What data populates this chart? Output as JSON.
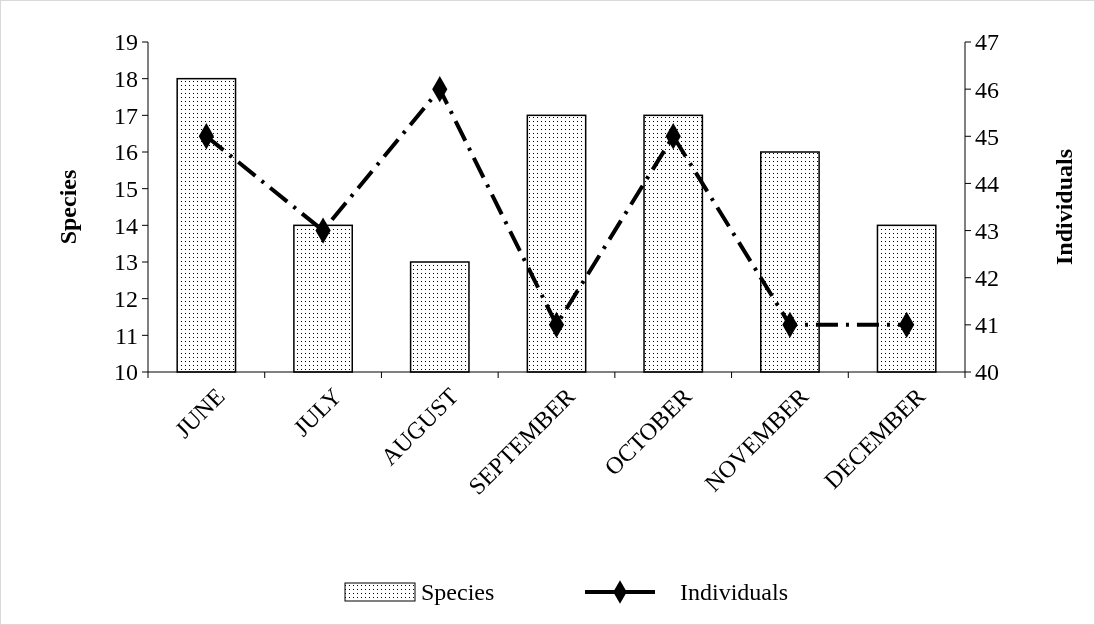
{
  "chart_data": {
    "type": "bar",
    "categories": [
      "JUNE",
      "JULY",
      "AUGUST",
      "SEPTEMBER",
      "OCTOBER",
      "NOVEMBER",
      "DECEMBER"
    ],
    "ylabel": "Species",
    "y2label": "Individuals",
    "ylim": [
      10,
      19
    ],
    "yticks": [
      10,
      11,
      12,
      13,
      14,
      15,
      16,
      17,
      18,
      19
    ],
    "y2lim": [
      40,
      47
    ],
    "y2ticks": [
      40,
      41,
      42,
      43,
      44,
      45,
      46,
      47
    ],
    "series": [
      {
        "name": "Species",
        "color": "#000000",
        "values": [
          18,
          14,
          13,
          17,
          17,
          16,
          14
        ]
      },
      {
        "name": "Individuals",
        "type": "line",
        "axis": "y2",
        "color": "#000000",
        "marker": "diamond",
        "line_style": "dashed",
        "values": [
          45,
          43,
          46,
          41,
          45,
          41,
          41
        ]
      }
    ],
    "legend": "bottom",
    "grid": false
  }
}
